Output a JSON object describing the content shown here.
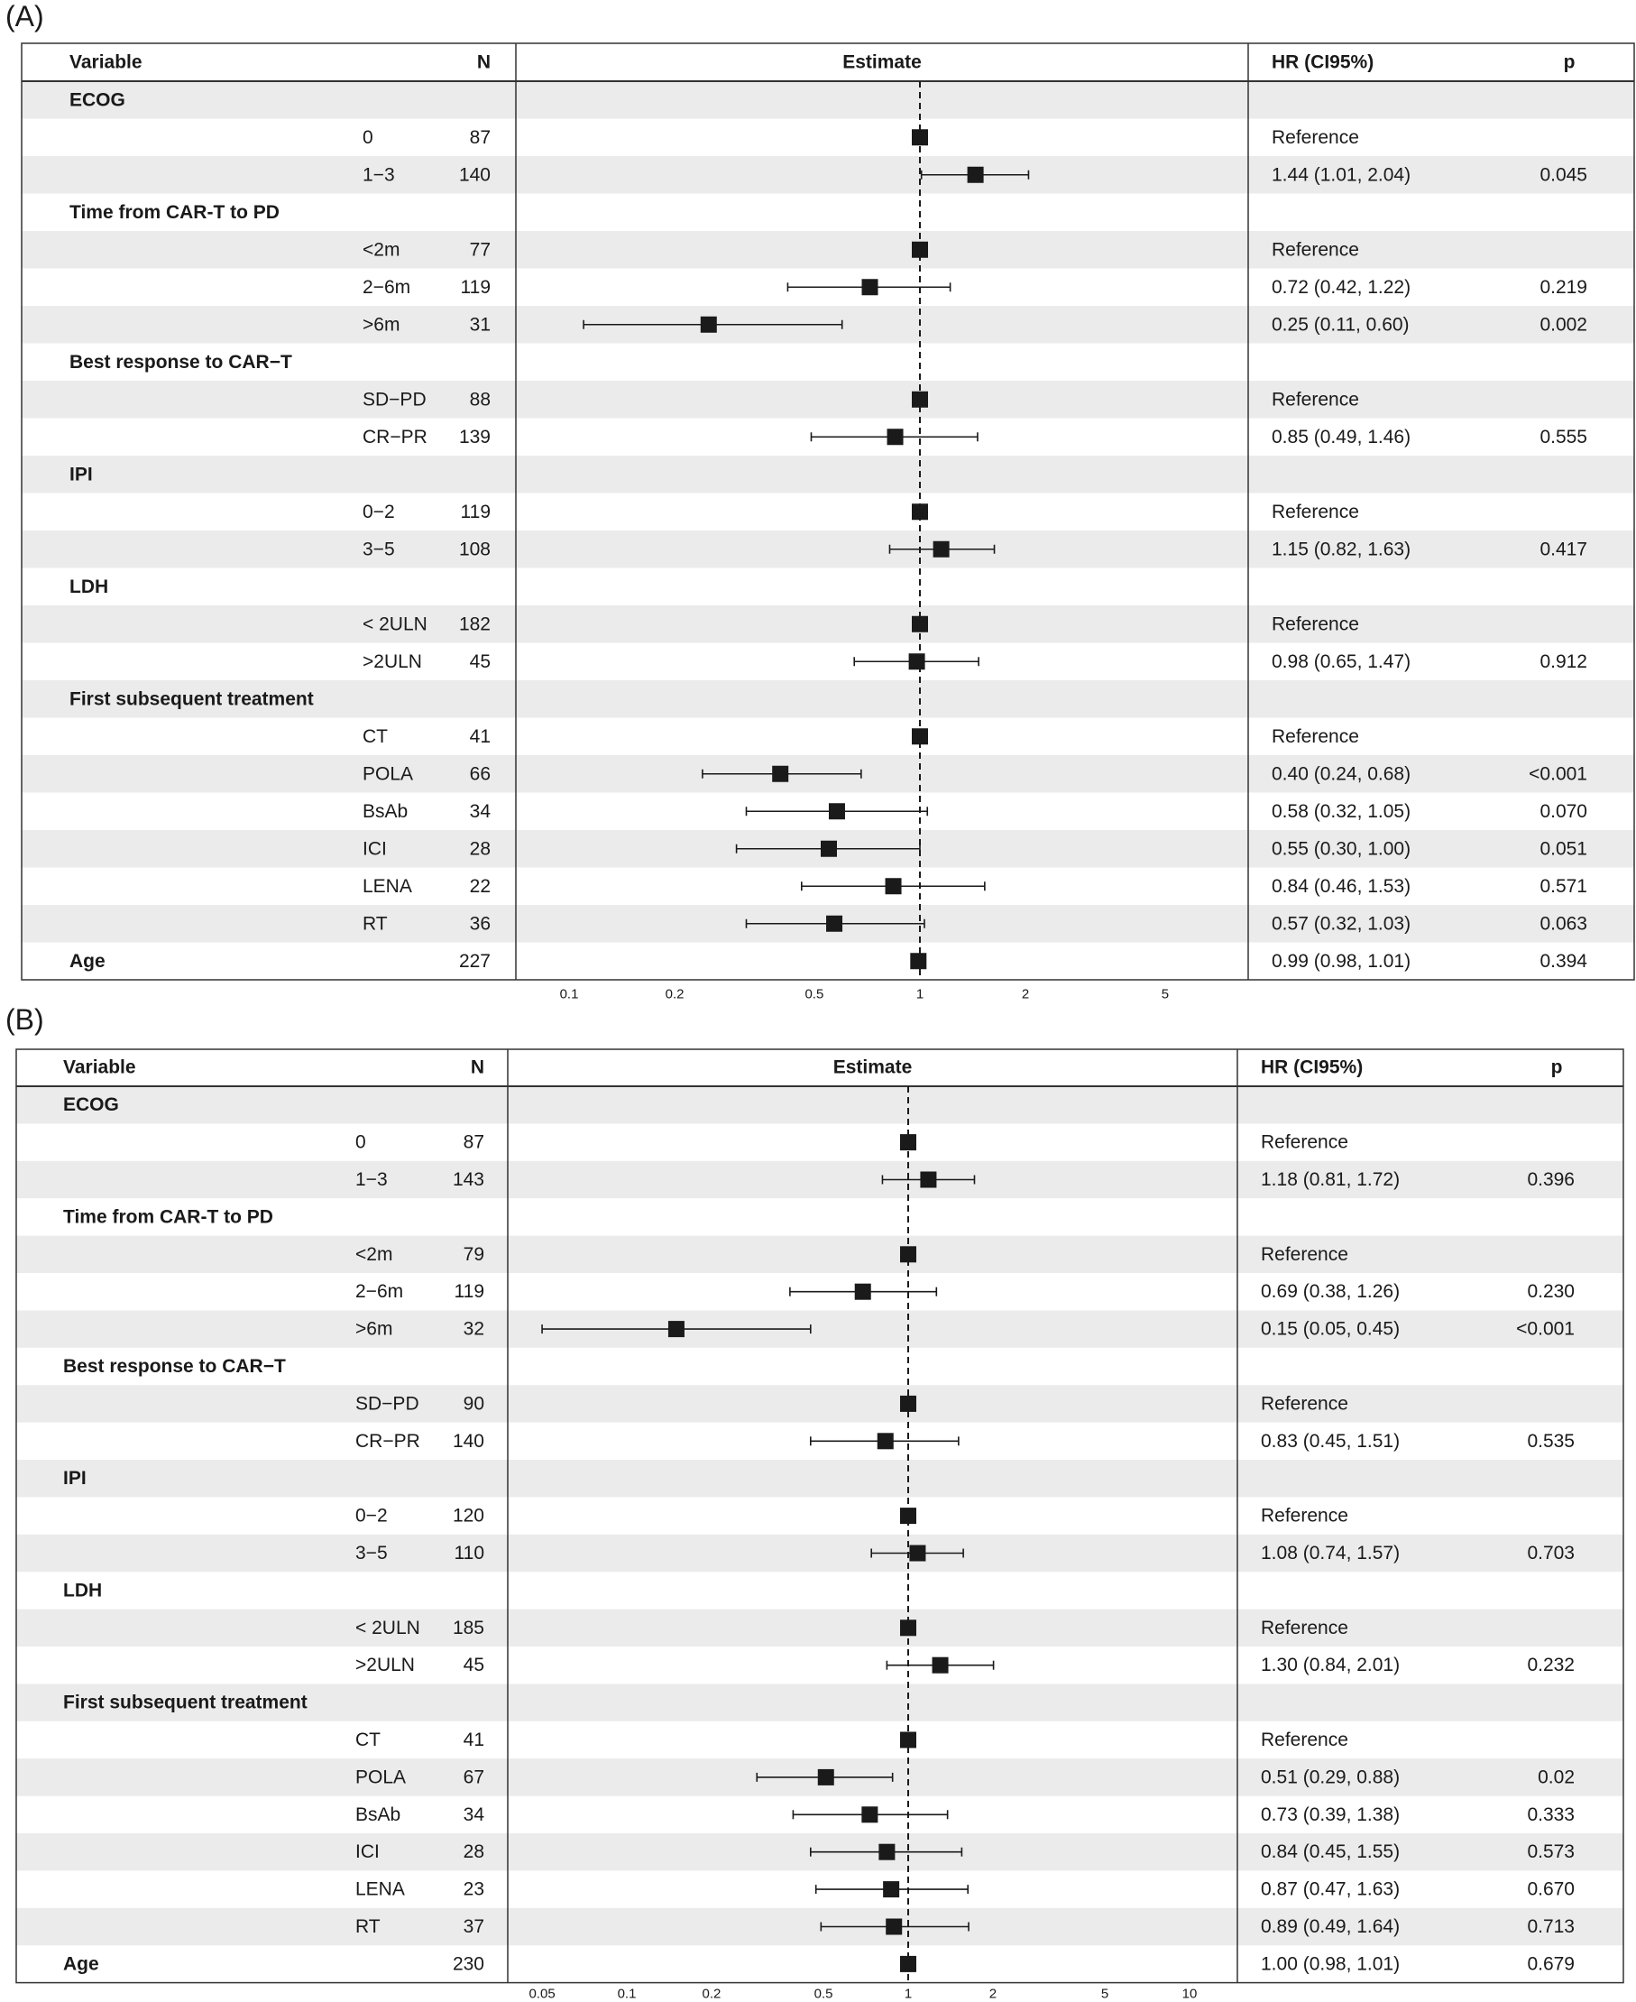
{
  "panels": [
    {
      "label": "(A)",
      "headers": {
        "variable": "Variable",
        "n": "N",
        "estimate": "Estimate",
        "hr": "HR (CI95%)",
        "p": "p"
      },
      "axis_ticks": [
        {
          "value": 0.1,
          "label": "0.1"
        },
        {
          "value": 0.2,
          "label": "0.2"
        },
        {
          "value": 0.5,
          "label": "0.5"
        },
        {
          "value": 1,
          "label": "1"
        },
        {
          "value": 2,
          "label": "2"
        },
        {
          "value": 5,
          "label": "5"
        }
      ],
      "rows": [
        {
          "kind": "group",
          "label": "ECOG"
        },
        {
          "kind": "level",
          "label": "0",
          "n": "87",
          "hr": 1,
          "ref": true,
          "text": "Reference",
          "p": ""
        },
        {
          "kind": "level",
          "label": "1−3",
          "n": "140",
          "hr": 1.44,
          "lo": 1.01,
          "hi": 2.04,
          "text": "1.44 (1.01, 2.04)",
          "p": "0.045"
        },
        {
          "kind": "group",
          "label": "Time from CAR-T to PD"
        },
        {
          "kind": "level",
          "label": "<2m",
          "n": "77",
          "hr": 1,
          "ref": true,
          "text": "Reference",
          "p": ""
        },
        {
          "kind": "level",
          "label": "2−6m",
          "n": "119",
          "hr": 0.72,
          "lo": 0.42,
          "hi": 1.22,
          "text": "0.72 (0.42, 1.22)",
          "p": "0.219"
        },
        {
          "kind": "level",
          "label": ">6m",
          "n": "31",
          "hr": 0.25,
          "lo": 0.11,
          "hi": 0.6,
          "text": "0.25 (0.11, 0.60)",
          "p": "0.002"
        },
        {
          "kind": "group",
          "label": "Best response to CAR−T"
        },
        {
          "kind": "level",
          "label": "SD−PD",
          "n": "88",
          "hr": 1,
          "ref": true,
          "text": "Reference",
          "p": ""
        },
        {
          "kind": "level",
          "label": "CR−PR",
          "n": "139",
          "hr": 0.85,
          "lo": 0.49,
          "hi": 1.46,
          "text": "0.85 (0.49, 1.46)",
          "p": "0.555"
        },
        {
          "kind": "group",
          "label": "IPI"
        },
        {
          "kind": "level",
          "label": "0−2",
          "n": "119",
          "hr": 1,
          "ref": true,
          "text": "Reference",
          "p": ""
        },
        {
          "kind": "level",
          "label": "3−5",
          "n": "108",
          "hr": 1.15,
          "lo": 0.82,
          "hi": 1.63,
          "text": "1.15 (0.82, 1.63)",
          "p": "0.417"
        },
        {
          "kind": "group",
          "label": "LDH"
        },
        {
          "kind": "level",
          "label": "< 2ULN",
          "n": "182",
          "hr": 1,
          "ref": true,
          "text": "Reference",
          "p": ""
        },
        {
          "kind": "level",
          "label": ">2ULN",
          "n": "45",
          "hr": 0.98,
          "lo": 0.65,
          "hi": 1.47,
          "text": "0.98 (0.65, 1.47)",
          "p": "0.912"
        },
        {
          "kind": "group",
          "label": "First subsequent treatment"
        },
        {
          "kind": "level",
          "label": "CT",
          "n": "41",
          "hr": 1,
          "ref": true,
          "text": "Reference",
          "p": ""
        },
        {
          "kind": "level",
          "label": "POLA",
          "n": "66",
          "hr": 0.4,
          "lo": 0.24,
          "hi": 0.68,
          "text": "0.40 (0.24, 0.68)",
          "p": "<0.001"
        },
        {
          "kind": "level",
          "label": "BsAb",
          "n": "34",
          "hr": 0.58,
          "lo": 0.32,
          "hi": 1.05,
          "text": "0.58 (0.32, 1.05)",
          "p": "0.070"
        },
        {
          "kind": "level",
          "label": "ICI",
          "n": "28",
          "hr": 0.55,
          "lo": 0.3,
          "hi": 1.0,
          "text": "0.55 (0.30, 1.00)",
          "p": "0.051"
        },
        {
          "kind": "level",
          "label": "LENA",
          "n": "22",
          "hr": 0.84,
          "lo": 0.46,
          "hi": 1.53,
          "text": "0.84 (0.46, 1.53)",
          "p": "0.571"
        },
        {
          "kind": "level",
          "label": "RT",
          "n": "36",
          "hr": 0.57,
          "lo": 0.32,
          "hi": 1.03,
          "text": "0.57 (0.32, 1.03)",
          "p": "0.063"
        },
        {
          "kind": "single",
          "label": "Age",
          "n": "227",
          "hr": 0.99,
          "lo": 0.98,
          "hi": 1.01,
          "text": "0.99 (0.98, 1.01)",
          "p": "0.394"
        }
      ]
    },
    {
      "label": "(B)",
      "headers": {
        "variable": "Variable",
        "n": "N",
        "estimate": "Estimate",
        "hr": "HR (CI95%)",
        "p": "p"
      },
      "axis_ticks": [
        {
          "value": 0.05,
          "label": "0.05"
        },
        {
          "value": 0.1,
          "label": "0.1"
        },
        {
          "value": 0.2,
          "label": "0.2"
        },
        {
          "value": 0.5,
          "label": "0.5"
        },
        {
          "value": 1,
          "label": "1"
        },
        {
          "value": 2,
          "label": "2"
        },
        {
          "value": 5,
          "label": "5"
        },
        {
          "value": 10,
          "label": "10"
        }
      ],
      "rows": [
        {
          "kind": "group",
          "label": "ECOG"
        },
        {
          "kind": "level",
          "label": "0",
          "n": "87",
          "hr": 1,
          "ref": true,
          "text": "Reference",
          "p": ""
        },
        {
          "kind": "level",
          "label": "1−3",
          "n": "143",
          "hr": 1.18,
          "lo": 0.81,
          "hi": 1.72,
          "text": "1.18 (0.81, 1.72)",
          "p": "0.396"
        },
        {
          "kind": "group",
          "label": "Time from CAR-T to PD"
        },
        {
          "kind": "level",
          "label": "<2m",
          "n": "79",
          "hr": 1,
          "ref": true,
          "text": "Reference",
          "p": ""
        },
        {
          "kind": "level",
          "label": "2−6m",
          "n": "119",
          "hr": 0.69,
          "lo": 0.38,
          "hi": 1.26,
          "text": "0.69 (0.38, 1.26)",
          "p": "0.230"
        },
        {
          "kind": "level",
          "label": ">6m",
          "n": "32",
          "hr": 0.15,
          "lo": 0.05,
          "hi": 0.45,
          "text": "0.15 (0.05, 0.45)",
          "p": "<0.001"
        },
        {
          "kind": "group",
          "label": "Best response to CAR−T"
        },
        {
          "kind": "level",
          "label": "SD−PD",
          "n": "90",
          "hr": 1,
          "ref": true,
          "text": "Reference",
          "p": ""
        },
        {
          "kind": "level",
          "label": "CR−PR",
          "n": "140",
          "hr": 0.83,
          "lo": 0.45,
          "hi": 1.51,
          "text": "0.83 (0.45, 1.51)",
          "p": "0.535"
        },
        {
          "kind": "group",
          "label": "IPI"
        },
        {
          "kind": "level",
          "label": "0−2",
          "n": "120",
          "hr": 1,
          "ref": true,
          "text": "Reference",
          "p": ""
        },
        {
          "kind": "level",
          "label": "3−5",
          "n": "110",
          "hr": 1.08,
          "lo": 0.74,
          "hi": 1.57,
          "text": "1.08 (0.74, 1.57)",
          "p": "0.703"
        },
        {
          "kind": "group",
          "label": "LDH"
        },
        {
          "kind": "level",
          "label": "< 2ULN",
          "n": "185",
          "hr": 1,
          "ref": true,
          "text": "Reference",
          "p": ""
        },
        {
          "kind": "level",
          "label": ">2ULN",
          "n": "45",
          "hr": 1.3,
          "lo": 0.84,
          "hi": 2.01,
          "text": "1.30 (0.84, 2.01)",
          "p": "0.232"
        },
        {
          "kind": "group",
          "label": "First subsequent treatment"
        },
        {
          "kind": "level",
          "label": "CT",
          "n": "41",
          "hr": 1,
          "ref": true,
          "text": "Reference",
          "p": ""
        },
        {
          "kind": "level",
          "label": "POLA",
          "n": "67",
          "hr": 0.51,
          "lo": 0.29,
          "hi": 0.88,
          "text": "0.51 (0.29, 0.88)",
          "p": "0.02"
        },
        {
          "kind": "level",
          "label": "BsAb",
          "n": "34",
          "hr": 0.73,
          "lo": 0.39,
          "hi": 1.38,
          "text": "0.73 (0.39, 1.38)",
          "p": "0.333"
        },
        {
          "kind": "level",
          "label": "ICI",
          "n": "28",
          "hr": 0.84,
          "lo": 0.45,
          "hi": 1.55,
          "text": "0.84 (0.45, 1.55)",
          "p": "0.573"
        },
        {
          "kind": "level",
          "label": "LENA",
          "n": "23",
          "hr": 0.87,
          "lo": 0.47,
          "hi": 1.63,
          "text": "0.87 (0.47, 1.63)",
          "p": "0.670"
        },
        {
          "kind": "level",
          "label": "RT",
          "n": "37",
          "hr": 0.89,
          "lo": 0.49,
          "hi": 1.64,
          "text": "0.89 (0.49, 1.64)",
          "p": "0.713"
        },
        {
          "kind": "single",
          "label": "Age",
          "n": "230",
          "hr": 1.0,
          "lo": 0.98,
          "hi": 1.01,
          "text": "1.00 (0.98, 1.01)",
          "p": "0.679"
        }
      ]
    }
  ],
  "chart_data": [
    {
      "type": "forest",
      "scale": "log",
      "reference_line": 1,
      "xticks": [
        0.1,
        0.2,
        0.5,
        1,
        2,
        5
      ],
      "series": [
        {
          "values": [
            {
              "label": "ECOG 1−3",
              "hr": 1.44,
              "ci": [
                1.01,
                2.04
              ]
            },
            {
              "label": "Time from CAR-T to PD 2−6m",
              "hr": 0.72,
              "ci": [
                0.42,
                1.22
              ]
            },
            {
              "label": "Time from CAR-T to PD >6m",
              "hr": 0.25,
              "ci": [
                0.11,
                0.6
              ]
            },
            {
              "label": "Best response CR−PR",
              "hr": 0.85,
              "ci": [
                0.49,
                1.46
              ]
            },
            {
              "label": "IPI 3−5",
              "hr": 1.15,
              "ci": [
                0.82,
                1.63
              ]
            },
            {
              "label": "LDH >2ULN",
              "hr": 0.98,
              "ci": [
                0.65,
                1.47
              ]
            },
            {
              "label": "POLA",
              "hr": 0.4,
              "ci": [
                0.24,
                0.68
              ]
            },
            {
              "label": "BsAb",
              "hr": 0.58,
              "ci": [
                0.32,
                1.05
              ]
            },
            {
              "label": "ICI",
              "hr": 0.55,
              "ci": [
                0.3,
                1.0
              ]
            },
            {
              "label": "LENA",
              "hr": 0.84,
              "ci": [
                0.46,
                1.53
              ]
            },
            {
              "label": "RT",
              "hr": 0.57,
              "ci": [
                0.32,
                1.03
              ]
            },
            {
              "label": "Age",
              "hr": 0.99,
              "ci": [
                0.98,
                1.01
              ]
            }
          ]
        }
      ]
    },
    {
      "type": "forest",
      "scale": "log",
      "reference_line": 1,
      "xticks": [
        0.05,
        0.1,
        0.2,
        0.5,
        1,
        2,
        5,
        10
      ],
      "series": [
        {
          "values": [
            {
              "label": "ECOG 1−3",
              "hr": 1.18,
              "ci": [
                0.81,
                1.72
              ]
            },
            {
              "label": "Time from CAR-T to PD 2−6m",
              "hr": 0.69,
              "ci": [
                0.38,
                1.26
              ]
            },
            {
              "label": "Time from CAR-T to PD >6m",
              "hr": 0.15,
              "ci": [
                0.05,
                0.45
              ]
            },
            {
              "label": "Best response CR−PR",
              "hr": 0.83,
              "ci": [
                0.45,
                1.51
              ]
            },
            {
              "label": "IPI 3−5",
              "hr": 1.08,
              "ci": [
                0.74,
                1.57
              ]
            },
            {
              "label": "LDH >2ULN",
              "hr": 1.3,
              "ci": [
                0.84,
                2.01
              ]
            },
            {
              "label": "POLA",
              "hr": 0.51,
              "ci": [
                0.29,
                0.88
              ]
            },
            {
              "label": "BsAb",
              "hr": 0.73,
              "ci": [
                0.39,
                1.38
              ]
            },
            {
              "label": "ICI",
              "hr": 0.84,
              "ci": [
                0.45,
                1.55
              ]
            },
            {
              "label": "LENA",
              "hr": 0.87,
              "ci": [
                0.47,
                1.63
              ]
            },
            {
              "label": "RT",
              "hr": 0.89,
              "ci": [
                0.49,
                1.64
              ]
            },
            {
              "label": "Age",
              "hr": 1.0,
              "ci": [
                0.98,
                1.01
              ]
            }
          ]
        }
      ]
    }
  ],
  "colors": {
    "stripe": "#ebebeb",
    "ink": "#1a1a1a",
    "border": "#333333"
  }
}
